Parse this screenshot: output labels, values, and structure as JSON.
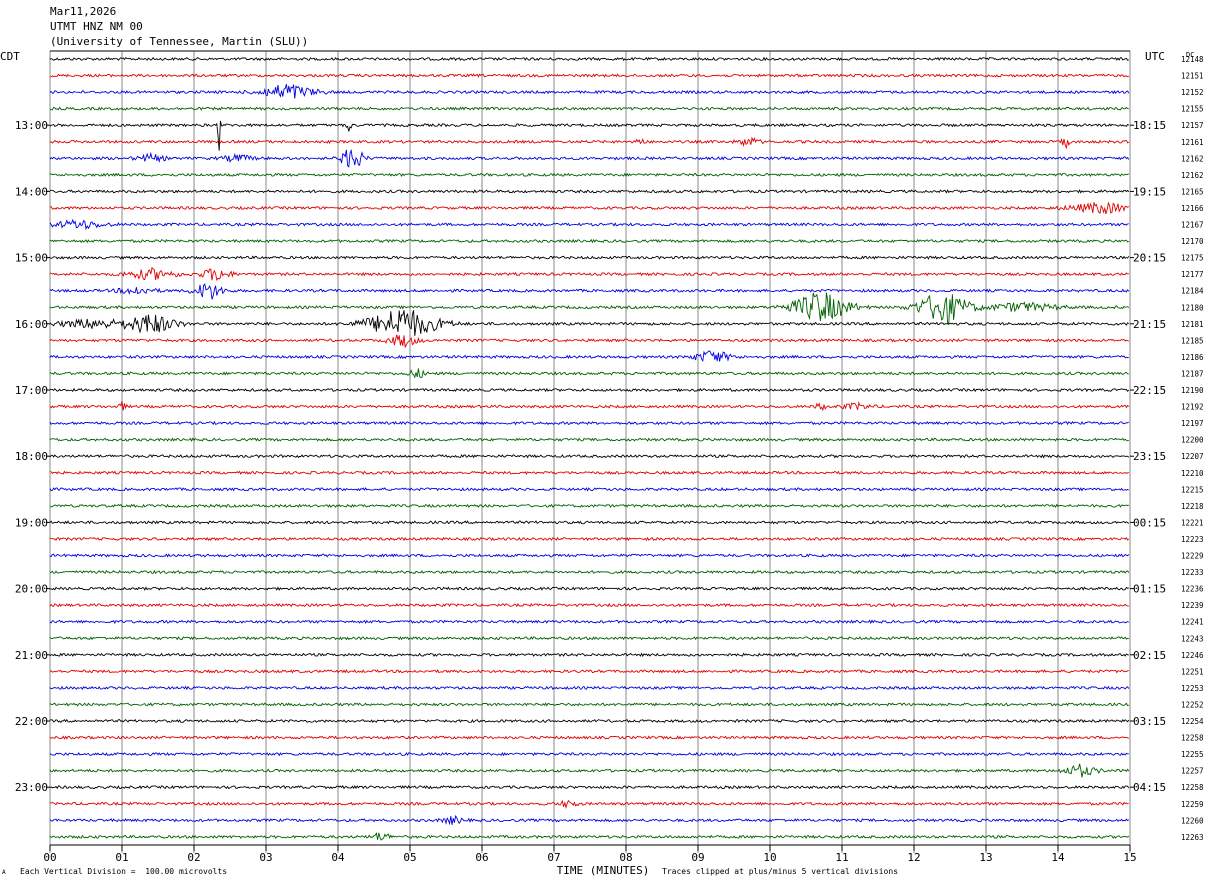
{
  "header": {
    "date": "Mar11,2026",
    "station": "UTMT HNZ NM 00",
    "institution": "(University of Tennessee, Martin (SLU))"
  },
  "axes": {
    "left_zone": "CDT",
    "right_zone": "UTC",
    "dc_label": "DC",
    "x_title": "TIME (MINUTES)"
  },
  "footer": {
    "scale_note": "Each Vertical Division =  100.00 microvolts",
    "clip_note": "Traces clipped at plus/minus 5 vertical divisions",
    "corner_mark": "A"
  },
  "colors": {
    "line1": "#000000",
    "line2": "#e00000",
    "line3": "#0000e0",
    "line4": "#006000",
    "grid": "#888888"
  },
  "chart_data": {
    "type": "line",
    "title": "",
    "x_range": [
      0,
      15
    ],
    "x_ticks": [
      "00",
      "01",
      "02",
      "03",
      "04",
      "05",
      "06",
      "07",
      "08",
      "09",
      "10",
      "11",
      "12",
      "13",
      "14",
      "15"
    ],
    "traces_per_hour": 4,
    "left_hour_labels": [
      "13:00",
      "14:00",
      "15:00",
      "16:00",
      "17:00",
      "18:00",
      "19:00",
      "20:00",
      "21:00",
      "22:00",
      "23:00"
    ],
    "right_hour_labels": [
      "18:15",
      "19:15",
      "20:15",
      "21:15",
      "22:15",
      "23:15",
      "00:15",
      "01:15",
      "02:15",
      "03:15",
      "04:15"
    ],
    "dc_offsets": [
      "12148",
      "12151",
      "12152",
      "12155",
      "12157",
      "12161",
      "12162",
      "12162",
      "12165",
      "12166",
      "12167",
      "12170",
      "12175",
      "12177",
      "12184",
      "12180",
      "12181",
      "12185",
      "12186",
      "12187",
      "12190",
      "12192",
      "12197",
      "12200",
      "12207",
      "12210",
      "12215",
      "12218",
      "12221",
      "12223",
      "12229",
      "12233",
      "12236",
      "12239",
      "12241",
      "12243",
      "12246",
      "12251",
      "12253",
      "12252",
      "12254",
      "12258",
      "12255",
      "12257",
      "12258",
      "12259",
      "12260",
      "12263"
    ],
    "events": [
      {
        "trace": 2,
        "minute": 3.3,
        "amp": 1.1,
        "dur": 1.5
      },
      {
        "trace": 5,
        "minute": 8.2,
        "amp": 0.8,
        "dur": 0.2
      },
      {
        "trace": 5,
        "minute": 9.7,
        "amp": 0.6,
        "dur": 0.6
      },
      {
        "trace": 5,
        "minute": 14.1,
        "amp": 0.9,
        "dur": 0.2
      },
      {
        "trace": 6,
        "minute": 1.4,
        "amp": 0.5,
        "dur": 0.8
      },
      {
        "trace": 6,
        "minute": 2.6,
        "amp": 0.5,
        "dur": 0.8
      },
      {
        "trace": 6,
        "minute": 4.2,
        "amp": 1.8,
        "dur": 0.6
      },
      {
        "trace": 4,
        "minute": 2.35,
        "amp": 3.5,
        "dur": 0.08
      },
      {
        "trace": 4,
        "minute": 4.15,
        "amp": 2.2,
        "dur": 0.1
      },
      {
        "trace": 9,
        "minute": 14.6,
        "amp": 0.7,
        "dur": 1.8
      },
      {
        "trace": 10,
        "minute": 0.4,
        "amp": 0.6,
        "dur": 1.4
      },
      {
        "trace": 13,
        "minute": 1.4,
        "amp": 0.7,
        "dur": 1.4
      },
      {
        "trace": 13,
        "minute": 2.3,
        "amp": 0.9,
        "dur": 0.8
      },
      {
        "trace": 14,
        "minute": 2.2,
        "amp": 1.3,
        "dur": 0.8
      },
      {
        "trace": 14,
        "minute": 1.2,
        "amp": 0.5,
        "dur": 1.0
      },
      {
        "trace": 15,
        "minute": 10.7,
        "amp": 2.2,
        "dur": 1.6
      },
      {
        "trace": 15,
        "minute": 12.4,
        "amp": 2.4,
        "dur": 1.4
      },
      {
        "trace": 15,
        "minute": 13.5,
        "amp": 0.6,
        "dur": 2.0
      },
      {
        "trace": 16,
        "minute": 1.4,
        "amp": 1.4,
        "dur": 1.4
      },
      {
        "trace": 16,
        "minute": 4.9,
        "amp": 2.2,
        "dur": 2.0
      },
      {
        "trace": 16,
        "minute": 0.6,
        "amp": 0.6,
        "dur": 2.0
      },
      {
        "trace": 17,
        "minute": 4.9,
        "amp": 0.9,
        "dur": 0.8
      },
      {
        "trace": 18,
        "minute": 9.2,
        "amp": 0.9,
        "dur": 1.0
      },
      {
        "trace": 19,
        "minute": 5.1,
        "amp": 0.6,
        "dur": 0.5
      },
      {
        "trace": 21,
        "minute": 1.0,
        "amp": 0.6,
        "dur": 0.2
      },
      {
        "trace": 21,
        "minute": 10.7,
        "amp": 0.5,
        "dur": 0.3
      },
      {
        "trace": 21,
        "minute": 11.2,
        "amp": 0.4,
        "dur": 0.8
      },
      {
        "trace": 43,
        "minute": 14.3,
        "amp": 0.8,
        "dur": 0.9
      },
      {
        "trace": 45,
        "minute": 7.2,
        "amp": 0.5,
        "dur": 0.5
      },
      {
        "trace": 46,
        "minute": 5.6,
        "amp": 0.5,
        "dur": 0.6
      },
      {
        "trace": 47,
        "minute": 4.6,
        "amp": 0.6,
        "dur": 0.5
      }
    ]
  }
}
